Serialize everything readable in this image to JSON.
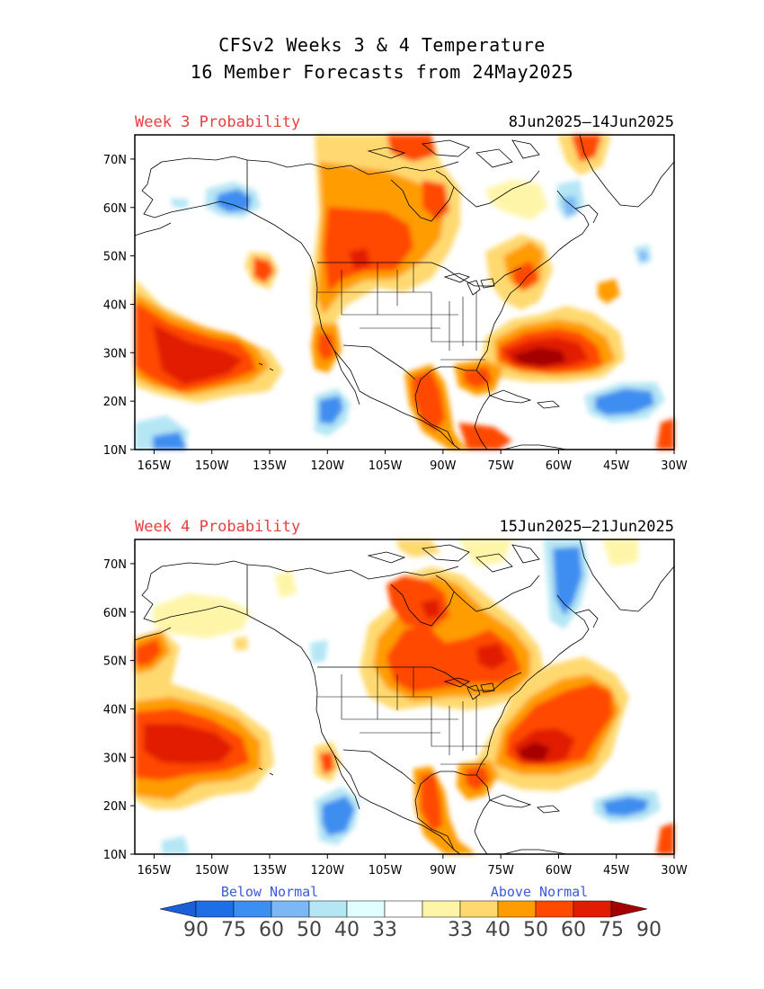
{
  "title": {
    "line1": "CFSv2 Weeks 3 & 4 Temperature",
    "line2": "16 Member Forecasts from 24May2025"
  },
  "panels": [
    {
      "label": "Week 3 Probability",
      "dates": "8Jun2025—14Jun2025"
    },
    {
      "label": "Week 4 Probability",
      "dates": "15Jun2025—21Jun2025"
    }
  ],
  "axes": {
    "lat_ticks": [
      "10N",
      "20N",
      "30N",
      "40N",
      "50N",
      "60N",
      "70N"
    ],
    "lon_ticks": [
      "165W",
      "150W",
      "135W",
      "120W",
      "105W",
      "90W",
      "75W",
      "60W",
      "45W",
      "30W"
    ],
    "lat_range": [
      10,
      75
    ],
    "lon_range": [
      -170,
      -30
    ]
  },
  "legend": {
    "below_label": "Below Normal",
    "above_label": "Above Normal",
    "numbers": [
      "90",
      "75",
      "60",
      "50",
      "40",
      "33",
      "33",
      "40",
      "50",
      "60",
      "75",
      "90"
    ],
    "colors_below": [
      "#1e6fe6",
      "#3c8ef0",
      "#7db8f6",
      "#b4e6f4",
      "#e1ffff"
    ],
    "color_neutral": "#ffffff",
    "colors_above": [
      "#fff5a9",
      "#ffd970",
      "#ff9c00",
      "#ff4a00",
      "#e11c00"
    ],
    "tip_below": "#1a5fd8",
    "tip_above": "#a50000"
  }
}
